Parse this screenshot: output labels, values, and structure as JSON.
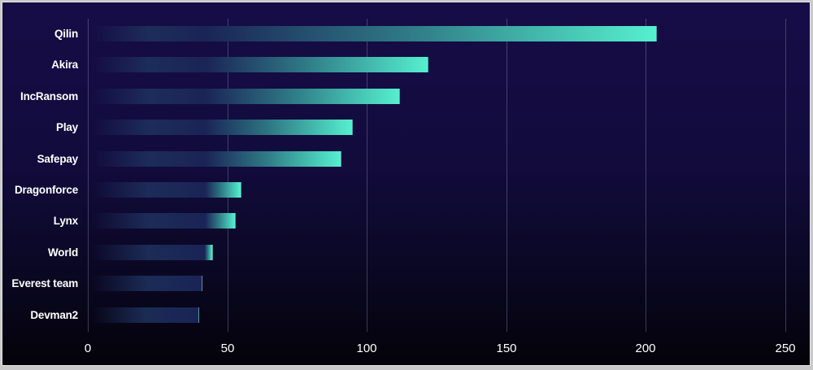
{
  "chart_data": {
    "type": "bar",
    "orientation": "horizontal",
    "title": "",
    "xlabel": "",
    "ylabel": "",
    "categories": [
      "Qilin",
      "Akira",
      "IncRansom",
      "Play",
      "Safepay",
      "Dragonforce",
      "Lynx",
      "World",
      "Everest team",
      "Devman2"
    ],
    "values": [
      204,
      122,
      112,
      95,
      91,
      55,
      53,
      45,
      41,
      40
    ],
    "xlim": [
      0,
      250
    ],
    "xticks": [
      0,
      50,
      100,
      150,
      200,
      250
    ],
    "xtick_labels": [
      "0",
      "50",
      "100",
      "150",
      "200",
      "250"
    ],
    "grid": "vertical",
    "legend": null
  },
  "colors": {
    "bar_end": "#55f0cf",
    "bar_start_fade": "#1a2456",
    "background_top": "#160d47",
    "background_bottom": "#040309",
    "text": "#ffffff",
    "gridline": "#5a5780"
  }
}
